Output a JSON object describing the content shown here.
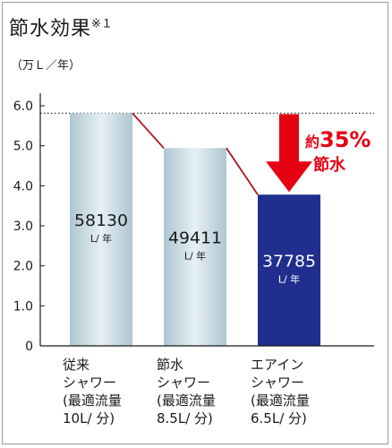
{
  "title": "節水効果",
  "title_note": "※１",
  "unit": "（万Ｌ／年）",
  "colors": {
    "bar_light": "#c9dbe3",
    "bar_highlight": "#202f8e",
    "connector": "#b2121e",
    "arrow": "#e50012",
    "reference_line": "#333333"
  },
  "annotation": {
    "prefix": "約",
    "value": "35%",
    "suffix": "節水"
  },
  "chart_data": {
    "type": "bar",
    "unit": "（万Ｌ／年）",
    "ylim": [
      0,
      6.0
    ],
    "yticks": [
      "6.0",
      "5.0",
      "4.0",
      "3.0",
      "2.0",
      "1.0",
      "0"
    ],
    "ytick_values": [
      6.0,
      5.0,
      4.0,
      3.0,
      2.0,
      1.0,
      0
    ],
    "categories": [
      "従来\nシャワー\n(最適流量\n10L/ 分)",
      "節水\nシャワー\n(最適流量\n8.5L/ 分)",
      "エアイン\nシャワー\n(最適流量\n6.5L/ 分)"
    ],
    "values": [
      5.813,
      4.9411,
      3.7785
    ],
    "data_labels": [
      "58130",
      "49411",
      "37785"
    ],
    "data_label_unit": "L/ 年",
    "reference_line": 5.813,
    "grid": false
  }
}
